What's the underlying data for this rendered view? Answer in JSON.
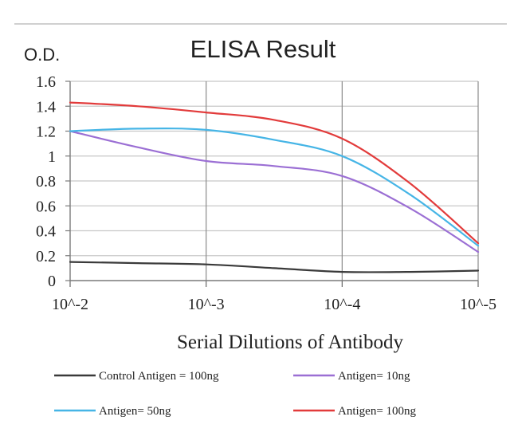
{
  "chart_data": {
    "type": "line",
    "title": "ELISA Result",
    "ylabel": "O.D.",
    "xlabel": "Serial Dilutions of Antibody",
    "x_ticks": [
      "10^-2",
      "10^-3",
      "10^-4",
      "10^-5"
    ],
    "ylim": [
      0,
      1.6
    ],
    "y_ticks": [
      "0",
      "0.2",
      "0.4",
      "0.6",
      "0.8",
      "1",
      "1.2",
      "1.4",
      "1.6"
    ],
    "y_tick_values": [
      0,
      0.2,
      0.4,
      0.6,
      0.8,
      1.0,
      1.2,
      1.4,
      1.6
    ],
    "x_log10": [
      -2,
      -2.5,
      -3,
      -3.5,
      -4,
      -4.5,
      -5
    ],
    "grid": true,
    "legend_position": "bottom",
    "series": [
      {
        "name": "Control Antigen = 100ng",
        "color": "#3a3a3a",
        "values": [
          0.15,
          0.14,
          0.13,
          0.1,
          0.07,
          0.07,
          0.08
        ]
      },
      {
        "name": "Antigen= 10ng",
        "color": "#9b6fd4",
        "values": [
          1.2,
          1.07,
          0.96,
          0.92,
          0.84,
          0.58,
          0.23
        ]
      },
      {
        "name": "Antigen= 50ng",
        "color": "#46b5e6",
        "values": [
          1.2,
          1.22,
          1.21,
          1.13,
          1.0,
          0.69,
          0.28
        ]
      },
      {
        "name": "Antigen= 100ng",
        "color": "#e23b3b",
        "values": [
          1.43,
          1.4,
          1.35,
          1.29,
          1.14,
          0.78,
          0.3
        ]
      }
    ]
  }
}
